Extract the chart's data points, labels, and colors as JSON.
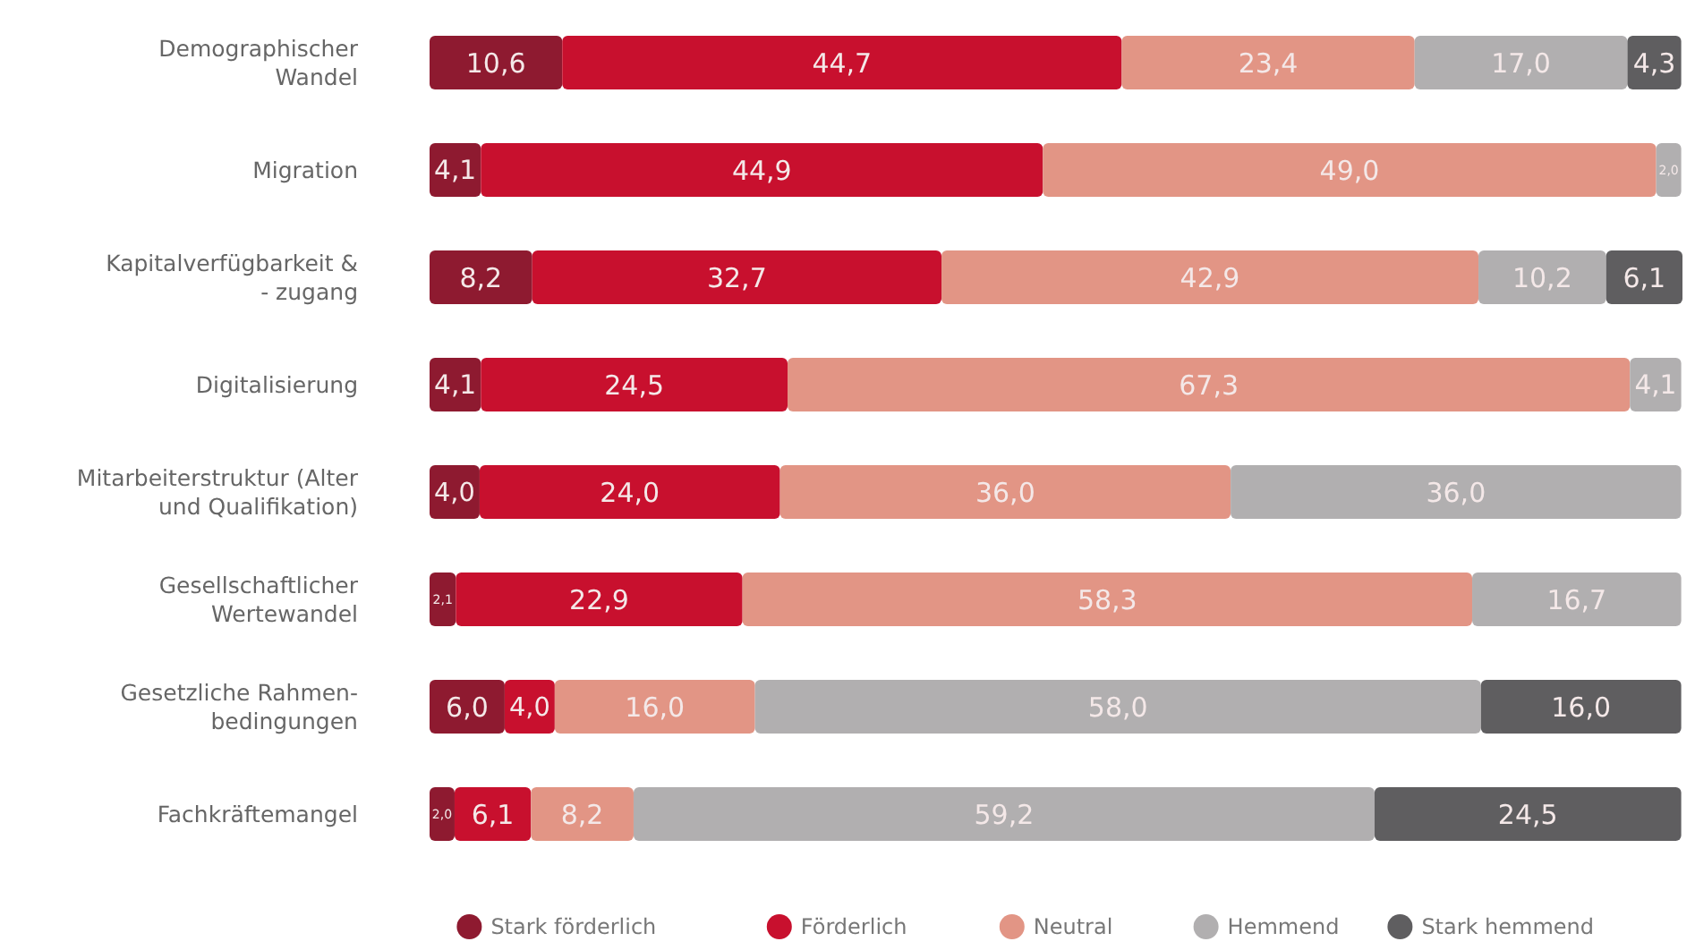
{
  "chart_data": {
    "type": "bar",
    "orientation": "horizontal",
    "stacked": true,
    "legend": "bottom",
    "categories": [
      "Demographischer\nWandel",
      "Migration",
      "Kapitalverfügbarkeit &\n- zugang",
      "Digitalisierung",
      "Mitarbeiterstruktur (Alter\nund Qualifikation)",
      "Gesellschaftlicher\nWertewandel",
      "Gesetzliche Rahmen-\nbedingungen",
      "Fachkräftemangel"
    ],
    "series": [
      {
        "name": "Stark förderlich",
        "color": "#8e1a30",
        "values": [
          10.6,
          4.1,
          8.2,
          4.1,
          4.0,
          2.1,
          6.0,
          2.0
        ],
        "value_labels": [
          "10,6",
          "4,1",
          "8,2",
          "4,1",
          "4,0",
          "2,1",
          "6,0",
          "2,0"
        ]
      },
      {
        "name": "Förderlich",
        "color": "#c8102e",
        "values": [
          44.7,
          44.9,
          32.7,
          24.5,
          24.0,
          22.9,
          4.0,
          6.1
        ],
        "value_labels": [
          "44,7",
          "44,9",
          "32,7",
          "24,5",
          "24,0",
          "22,9",
          "4,0",
          "6,1"
        ]
      },
      {
        "name": "Neutral",
        "color": "#e29585",
        "values": [
          23.4,
          49.0,
          42.9,
          67.3,
          36.0,
          58.3,
          16.0,
          8.2
        ],
        "value_labels": [
          "23,4",
          "49,0",
          "42,9",
          "67,3",
          "36,0",
          "58,3",
          "16,0",
          "8,2"
        ]
      },
      {
        "name": "Hemmend",
        "color": "#b1afb0",
        "values": [
          17.0,
          2.0,
          10.2,
          4.1,
          36.0,
          16.7,
          58.0,
          59.2
        ],
        "value_labels": [
          "17,0",
          "2,0",
          "10,2",
          "4,1",
          "36,0",
          "16,7",
          "58,0",
          "59,2"
        ]
      },
      {
        "name": "Stark hemmend",
        "color": "#5f5e60",
        "values": [
          4.3,
          null,
          6.1,
          null,
          null,
          null,
          16.0,
          24.5
        ],
        "value_labels": [
          "4,3",
          null,
          "6,1",
          null,
          null,
          null,
          "16,0",
          "24,5"
        ]
      }
    ]
  }
}
